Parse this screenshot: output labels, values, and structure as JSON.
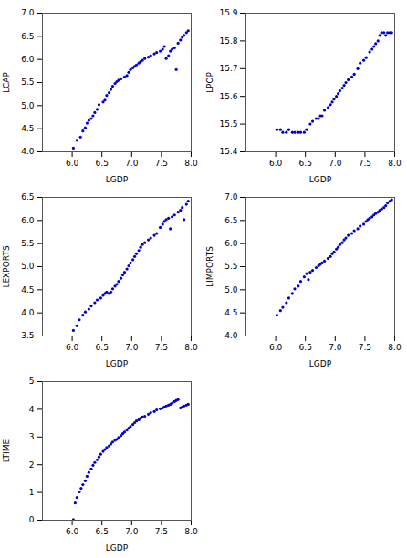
{
  "chart_data": [
    {
      "type": "scatter",
      "color": "#0000CD",
      "grid": false,
      "xlabel": "LGDP",
      "ylabel": "LCAP",
      "xlim": [
        5.5,
        8.0
      ],
      "xticks": [
        {
          "value": 6.0,
          "label": "6.0"
        },
        6.5,
        {
          "value": 7.0,
          "label": "7.0"
        },
        7.5,
        {
          "value": 8.0,
          "label": "8.0"
        }
      ],
      "ylim": [
        4.0,
        7.0
      ],
      "yticks": [
        {
          "value": 4.0,
          "label": "4.0"
        },
        4.5,
        {
          "value": 5.0,
          "label": "5.0"
        },
        5.5,
        {
          "value": 6.0,
          "label": "6.0"
        },
        6.5,
        {
          "value": 7.0,
          "label": "7.0"
        }
      ],
      "x": [
        6.02,
        6.08,
        6.14,
        6.18,
        6.22,
        6.25,
        6.28,
        6.32,
        6.35,
        6.38,
        6.42,
        6.45,
        6.52,
        6.55,
        6.58,
        6.62,
        6.65,
        6.68,
        6.72,
        6.75,
        6.78,
        6.82,
        6.88,
        6.92,
        6.95,
        6.98,
        7.02,
        7.05,
        7.08,
        7.12,
        7.15,
        7.18,
        7.22,
        7.28,
        7.32,
        7.38,
        7.42,
        7.48,
        7.52,
        7.55,
        7.58,
        7.62,
        7.65,
        7.68,
        7.72,
        7.75,
        7.78,
        7.82,
        7.85,
        7.88,
        7.92,
        7.95
      ],
      "values": [
        4.08,
        4.25,
        4.32,
        4.45,
        4.52,
        4.62,
        4.68,
        4.72,
        4.78,
        4.85,
        4.92,
        5.02,
        5.08,
        5.12,
        5.22,
        5.28,
        5.35,
        5.42,
        5.48,
        5.52,
        5.55,
        5.58,
        5.62,
        5.65,
        5.72,
        5.78,
        5.82,
        5.85,
        5.88,
        5.92,
        5.95,
        5.98,
        6.02,
        6.05,
        6.08,
        6.12,
        6.15,
        6.18,
        6.22,
        6.28,
        6.02,
        6.08,
        6.18,
        6.22,
        6.25,
        5.78,
        6.35,
        6.42,
        6.48,
        6.52,
        6.58,
        6.62
      ]
    },
    {
      "type": "scatter",
      "color": "#0000CD",
      "grid": false,
      "xlabel": "LGDP",
      "ylabel": "LPOP",
      "xlim": [
        5.5,
        8.0
      ],
      "xticks": [
        {
          "value": 6.0,
          "label": "6.0"
        },
        6.5,
        {
          "value": 7.0,
          "label": "7.0"
        },
        7.5,
        {
          "value": 8.0,
          "label": "8.0"
        }
      ],
      "ylim": [
        15.4,
        15.9
      ],
      "yticks": [
        15.4,
        15.5,
        15.6,
        15.7,
        15.8,
        15.9
      ],
      "x": [
        6.02,
        6.08,
        6.12,
        6.18,
        6.22,
        6.28,
        6.32,
        6.38,
        6.42,
        6.48,
        6.52,
        6.58,
        6.62,
        6.68,
        6.72,
        6.75,
        6.78,
        6.82,
        6.88,
        6.92,
        6.95,
        6.98,
        7.02,
        7.05,
        7.08,
        7.12,
        7.15,
        7.18,
        7.22,
        7.28,
        7.32,
        7.38,
        7.42,
        7.48,
        7.52,
        7.58,
        7.62,
        7.65,
        7.68,
        7.72,
        7.75,
        7.78,
        7.82,
        7.85,
        7.88,
        7.92,
        7.95
      ],
      "values": [
        15.48,
        15.48,
        15.47,
        15.47,
        15.48,
        15.47,
        15.47,
        15.47,
        15.47,
        15.47,
        15.48,
        15.5,
        15.51,
        15.52,
        15.52,
        15.53,
        15.53,
        15.55,
        15.56,
        15.57,
        15.58,
        15.59,
        15.6,
        15.61,
        15.62,
        15.63,
        15.64,
        15.65,
        15.66,
        15.67,
        15.68,
        15.7,
        15.72,
        15.73,
        15.74,
        15.76,
        15.77,
        15.78,
        15.79,
        15.8,
        15.82,
        15.83,
        15.83,
        15.82,
        15.83,
        15.83,
        15.83
      ]
    },
    {
      "type": "scatter",
      "color": "#0000CD",
      "grid": false,
      "xlabel": "LGDP",
      "ylabel": "LEXPORTS",
      "xlim": [
        5.5,
        8.0
      ],
      "xticks": [
        {
          "value": 6.0,
          "label": "6.0"
        },
        6.5,
        {
          "value": 7.0,
          "label": "7.0"
        },
        7.5,
        {
          "value": 8.0,
          "label": "8.0"
        }
      ],
      "ylim": [
        3.5,
        6.5
      ],
      "yticks": [
        3.5,
        {
          "value": 4.0,
          "label": "4.0"
        },
        4.5,
        {
          "value": 5.0,
          "label": "5.0"
        },
        5.5,
        {
          "value": 6.0,
          "label": "6.0"
        },
        6.5
      ],
      "x": [
        6.02,
        6.08,
        6.12,
        6.18,
        6.22,
        6.28,
        6.32,
        6.38,
        6.42,
        6.48,
        6.52,
        6.55,
        6.58,
        6.62,
        6.65,
        6.68,
        6.72,
        6.75,
        6.78,
        6.82,
        6.85,
        6.88,
        6.92,
        6.95,
        6.98,
        7.02,
        7.05,
        7.08,
        7.12,
        7.15,
        7.18,
        7.22,
        7.28,
        7.32,
        7.38,
        7.42,
        7.48,
        7.52,
        7.55,
        7.58,
        7.62,
        7.65,
        7.68,
        7.72,
        7.78,
        7.82,
        7.85,
        7.88,
        7.92,
        7.95
      ],
      "values": [
        3.62,
        3.72,
        3.85,
        3.95,
        4.02,
        4.08,
        4.15,
        4.22,
        4.28,
        4.32,
        4.38,
        4.42,
        4.45,
        4.42,
        4.45,
        4.52,
        4.58,
        4.62,
        4.68,
        4.75,
        4.82,
        4.88,
        4.95,
        5.02,
        5.08,
        5.15,
        5.22,
        5.28,
        5.35,
        5.42,
        5.48,
        5.52,
        5.58,
        5.62,
        5.68,
        5.72,
        5.85,
        5.92,
        5.98,
        6.02,
        6.05,
        5.82,
        6.08,
        6.12,
        6.18,
        6.22,
        6.28,
        6.02,
        6.35,
        6.42
      ]
    },
    {
      "type": "scatter",
      "color": "#0000CD",
      "grid": false,
      "xlabel": "LGDP",
      "ylabel": "LIMPORTS",
      "xlim": [
        5.5,
        8.0
      ],
      "xticks": [
        {
          "value": 6.0,
          "label": "6.0"
        },
        6.5,
        {
          "value": 7.0,
          "label": "7.0"
        },
        7.5,
        {
          "value": 8.0,
          "label": "8.0"
        }
      ],
      "ylim": [
        4.0,
        7.0
      ],
      "yticks": [
        {
          "value": 4.0,
          "label": "4.0"
        },
        4.5,
        {
          "value": 5.0,
          "label": "5.0"
        },
        5.5,
        {
          "value": 6.0,
          "label": "6.0"
        },
        6.5,
        {
          "value": 7.0,
          "label": "7.0"
        }
      ],
      "x": [
        6.02,
        6.08,
        6.12,
        6.18,
        6.22,
        6.28,
        6.32,
        6.38,
        6.42,
        6.48,
        6.52,
        6.55,
        6.58,
        6.62,
        6.68,
        6.72,
        6.75,
        6.78,
        6.82,
        6.88,
        6.92,
        6.95,
        6.98,
        7.02,
        7.05,
        7.08,
        7.12,
        7.15,
        7.18,
        7.22,
        7.28,
        7.32,
        7.38,
        7.42,
        7.48,
        7.52,
        7.55,
        7.58,
        7.62,
        7.65,
        7.68,
        7.72,
        7.75,
        7.78,
        7.82,
        7.85,
        7.88,
        7.92,
        7.95
      ],
      "values": [
        4.45,
        4.55,
        4.62,
        4.72,
        4.82,
        4.92,
        5.02,
        5.08,
        5.18,
        5.28,
        5.35,
        5.22,
        5.38,
        5.42,
        5.48,
        5.52,
        5.55,
        5.58,
        5.62,
        5.68,
        5.72,
        5.78,
        5.82,
        5.88,
        5.92,
        5.98,
        6.02,
        6.08,
        6.12,
        6.18,
        6.22,
        6.28,
        6.32,
        6.38,
        6.42,
        6.48,
        6.52,
        6.55,
        6.58,
        6.62,
        6.65,
        6.68,
        6.72,
        6.75,
        6.78,
        6.82,
        6.88,
        6.92,
        6.95
      ]
    },
    {
      "type": "scatter",
      "color": "#0000CD",
      "grid": false,
      "xlabel": "LGDP",
      "ylabel": "LTIME",
      "xlim": [
        5.5,
        8.0
      ],
      "xticks": [
        {
          "value": 6.0,
          "label": "6.0"
        },
        6.5,
        {
          "value": 7.0,
          "label": "7.0"
        },
        7.5,
        {
          "value": 8.0,
          "label": "8.0"
        }
      ],
      "ylim": [
        0,
        5
      ],
      "yticks": [
        0,
        1,
        2,
        3,
        4,
        5
      ],
      "x": [
        6.02,
        6.05,
        6.08,
        6.12,
        6.15,
        6.18,
        6.22,
        6.25,
        6.28,
        6.32,
        6.35,
        6.38,
        6.42,
        6.45,
        6.48,
        6.52,
        6.55,
        6.58,
        6.62,
        6.65,
        6.68,
        6.72,
        6.75,
        6.78,
        6.82,
        6.85,
        6.88,
        6.92,
        6.95,
        6.98,
        7.02,
        7.05,
        7.08,
        7.12,
        7.15,
        7.18,
        7.22,
        7.28,
        7.32,
        7.38,
        7.42,
        7.48,
        7.52,
        7.55,
        7.58,
        7.62,
        7.65,
        7.68,
        7.72,
        7.75,
        7.78,
        7.82,
        7.85,
        7.88,
        7.92,
        7.95
      ],
      "values": [
        0.02,
        0.62,
        0.82,
        1.02,
        1.15,
        1.28,
        1.42,
        1.58,
        1.72,
        1.85,
        1.98,
        2.08,
        2.18,
        2.28,
        2.38,
        2.48,
        2.55,
        2.62,
        2.68,
        2.75,
        2.82,
        2.88,
        2.92,
        2.98,
        3.05,
        3.12,
        3.18,
        3.25,
        3.32,
        3.38,
        3.45,
        3.52,
        3.58,
        3.62,
        3.68,
        3.72,
        3.75,
        3.82,
        3.88,
        3.92,
        3.98,
        4.02,
        4.05,
        4.08,
        4.12,
        4.15,
        4.18,
        4.22,
        4.28,
        4.32,
        4.35,
        4.05,
        4.08,
        4.12,
        4.15,
        4.18
      ]
    }
  ]
}
